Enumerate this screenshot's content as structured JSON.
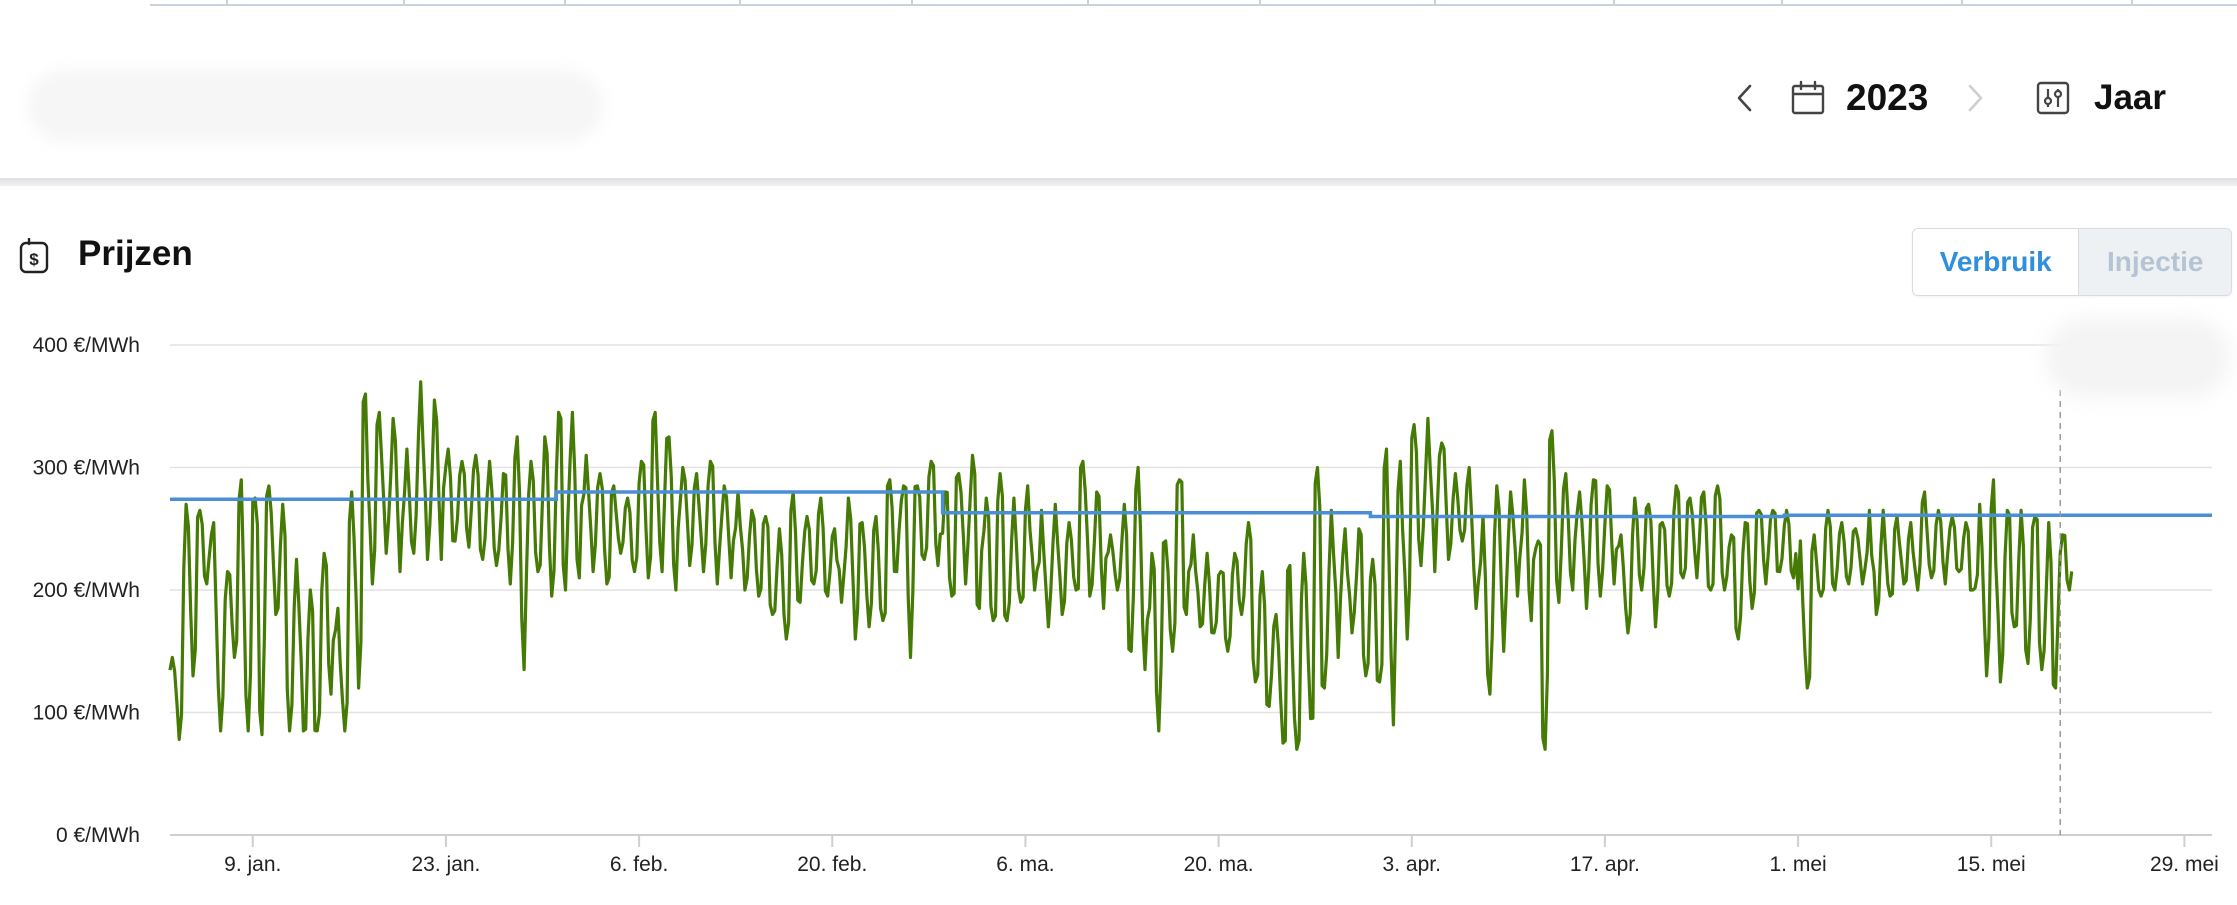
{
  "header": {
    "year": "2023",
    "period": "Jaar",
    "icons": [
      "chevron-left-icon",
      "calendar-icon",
      "chevron-right-icon",
      "sliders-icon"
    ]
  },
  "section": {
    "title": "Prijzen",
    "icon": "price-tag-icon"
  },
  "toggle": {
    "verbruik_label": "Verbruik",
    "injectie_label": "Injectie",
    "active": "Verbruik"
  },
  "colors": {
    "price_line": "#457a05",
    "avg_line": "#4a8fd4",
    "toggle_active": "#2f8fdd",
    "gridline": "#e2e2e2"
  },
  "chart_data": {
    "type": "line",
    "title": "",
    "xlabel": "",
    "ylabel": "",
    "ylim": [
      0,
      400
    ],
    "xlim": [
      "2023-01-03",
      "2023-05-31"
    ],
    "grid": true,
    "y_ticks": [
      {
        "value": 0,
        "label": "0 €/MWh"
      },
      {
        "value": 100,
        "label": "100 €/MWh"
      },
      {
        "value": 200,
        "label": "200 €/MWh"
      },
      {
        "value": 300,
        "label": "300 €/MWh"
      },
      {
        "value": 400,
        "label": "400 €/MWh"
      }
    ],
    "x_ticks": [
      {
        "date": "2023-01-09",
        "label": "9. jan."
      },
      {
        "date": "2023-01-23",
        "label": "23. jan."
      },
      {
        "date": "2023-02-06",
        "label": "6. feb."
      },
      {
        "date": "2023-02-20",
        "label": "20. feb."
      },
      {
        "date": "2023-03-06",
        "label": "6. ma."
      },
      {
        "date": "2023-03-20",
        "label": "20. ma."
      },
      {
        "date": "2023-04-03",
        "label": "3. apr."
      },
      {
        "date": "2023-04-17",
        "label": "17. apr."
      },
      {
        "date": "2023-05-01",
        "label": "1. mei"
      },
      {
        "date": "2023-05-15",
        "label": "15. mei"
      },
      {
        "date": "2023-05-29",
        "label": "29. mei"
      }
    ],
    "marker_date": "2023-05-20",
    "series": [
      {
        "role": "price",
        "color": "#457a05",
        "x": [
          "2023-01-03",
          "2023-01-04",
          "2023-01-05",
          "2023-01-06",
          "2023-01-07",
          "2023-01-08",
          "2023-01-09",
          "2023-01-10",
          "2023-01-11",
          "2023-01-12",
          "2023-01-13",
          "2023-01-14",
          "2023-01-15",
          "2023-01-16",
          "2023-01-17",
          "2023-01-18",
          "2023-01-19",
          "2023-01-20",
          "2023-01-21",
          "2023-01-22",
          "2023-01-23",
          "2023-01-24",
          "2023-01-25",
          "2023-01-26",
          "2023-01-27",
          "2023-01-28",
          "2023-01-29",
          "2023-01-30",
          "2023-01-31",
          "2023-02-01",
          "2023-02-02",
          "2023-02-03",
          "2023-02-04",
          "2023-02-05",
          "2023-02-06",
          "2023-02-07",
          "2023-02-08",
          "2023-02-09",
          "2023-02-10",
          "2023-02-11",
          "2023-02-12",
          "2023-02-13",
          "2023-02-14",
          "2023-02-15",
          "2023-02-16",
          "2023-02-17",
          "2023-02-18",
          "2023-02-19",
          "2023-02-20",
          "2023-02-21",
          "2023-02-22",
          "2023-02-23",
          "2023-02-24",
          "2023-02-25",
          "2023-02-26",
          "2023-02-27",
          "2023-02-28",
          "2023-03-01",
          "2023-03-02",
          "2023-03-03",
          "2023-03-04",
          "2023-03-05",
          "2023-03-06",
          "2023-03-07",
          "2023-03-08",
          "2023-03-09",
          "2023-03-10",
          "2023-03-11",
          "2023-03-12",
          "2023-03-13",
          "2023-03-14",
          "2023-03-15",
          "2023-03-16",
          "2023-03-17",
          "2023-03-18",
          "2023-03-19",
          "2023-03-20",
          "2023-03-21",
          "2023-03-22",
          "2023-03-23",
          "2023-03-24",
          "2023-03-25",
          "2023-03-26",
          "2023-03-27",
          "2023-03-28",
          "2023-03-29",
          "2023-03-30",
          "2023-03-31",
          "2023-04-01",
          "2023-04-02",
          "2023-04-03",
          "2023-04-04",
          "2023-04-05",
          "2023-04-06",
          "2023-04-07",
          "2023-04-08",
          "2023-04-09",
          "2023-04-10",
          "2023-04-11",
          "2023-04-12",
          "2023-04-13",
          "2023-04-14",
          "2023-04-15",
          "2023-04-16",
          "2023-04-17",
          "2023-04-18",
          "2023-04-19",
          "2023-04-20",
          "2023-04-21",
          "2023-04-22",
          "2023-04-23",
          "2023-04-24",
          "2023-04-25",
          "2023-04-26",
          "2023-04-27",
          "2023-04-28",
          "2023-04-29",
          "2023-04-30",
          "2023-05-01",
          "2023-05-02",
          "2023-05-03",
          "2023-05-04",
          "2023-05-05",
          "2023-05-06",
          "2023-05-07",
          "2023-05-08",
          "2023-05-09",
          "2023-05-10",
          "2023-05-11",
          "2023-05-12",
          "2023-05-13",
          "2023-05-14",
          "2023-05-15",
          "2023-05-16",
          "2023-05-17",
          "2023-05-18",
          "2023-05-19",
          "2023-05-20",
          "2023-05-21",
          "2023-05-22"
        ],
        "y_min": [
          78,
          130,
          205,
          85,
          145,
          85,
          82,
          180,
          85,
          85,
          85,
          115,
          85,
          120,
          205,
          230,
          215,
          230,
          225,
          225,
          240,
          235,
          225,
          220,
          205,
          135,
          215,
          195,
          200,
          210,
          215,
          205,
          230,
          215,
          210,
          215,
          200,
          220,
          215,
          205,
          210,
          200,
          195,
          180,
          160,
          190,
          205,
          195,
          190,
          160,
          170,
          175,
          215,
          145,
          225,
          220,
          195,
          205,
          185,
          175,
          175,
          190,
          200,
          170,
          180,
          200,
          195,
          185,
          200,
          150,
          135,
          85,
          150,
          180,
          170,
          165,
          150,
          180,
          125,
          105,
          75,
          70,
          95,
          120,
          145,
          165,
          130,
          125,
          90,
          160,
          220,
          215,
          225,
          240,
          185,
          115,
          150,
          195,
          175,
          70,
          190,
          200,
          185,
          195,
          205,
          165,
          200,
          170,
          195,
          210,
          210,
          200,
          200,
          160,
          185,
          205,
          215,
          210,
          120,
          195,
          200,
          205,
          205,
          180,
          195,
          205,
          200,
          210,
          205,
          215,
          200,
          130,
          125,
          170,
          140,
          135,
          120,
          200
        ],
        "y_max": [
          145,
          270,
          265,
          255,
          215,
          290,
          275,
          285,
          270,
          225,
          200,
          230,
          185,
          280,
          360,
          345,
          340,
          315,
          370,
          355,
          315,
          305,
          310,
          305,
          295,
          325,
          305,
          325,
          345,
          345,
          310,
          295,
          285,
          275,
          305,
          345,
          325,
          300,
          295,
          305,
          285,
          280,
          265,
          260,
          250,
          280,
          260,
          275,
          250,
          275,
          255,
          260,
          290,
          285,
          285,
          305,
          280,
          295,
          310,
          275,
          295,
          275,
          285,
          265,
          270,
          255,
          305,
          280,
          245,
          270,
          300,
          230,
          240,
          290,
          245,
          230,
          215,
          230,
          255,
          215,
          180,
          220,
          230,
          300,
          265,
          250,
          250,
          225,
          315,
          305,
          335,
          340,
          320,
          295,
          300,
          260,
          285,
          280,
          290,
          240,
          330,
          295,
          280,
          290,
          285,
          245,
          275,
          270,
          255,
          285,
          275,
          280,
          285,
          245,
          255,
          265,
          265,
          265,
          240,
          245,
          265,
          255,
          250,
          265,
          265,
          260,
          255,
          280,
          265,
          260,
          255,
          270,
          290,
          265,
          265,
          260,
          255,
          245
        ],
        "last_value": 200
      },
      {
        "role": "average",
        "color": "#4a8fd4",
        "steps": [
          {
            "from": "2023-01-03",
            "to": "2023-01-31",
            "value": 274
          },
          {
            "from": "2023-01-31",
            "to": "2023-02-28",
            "value": 280
          },
          {
            "from": "2023-02-28",
            "to": "2023-03-31",
            "value": 263
          },
          {
            "from": "2023-03-31",
            "to": "2023-04-30",
            "value": 260
          },
          {
            "from": "2023-04-30",
            "to": "2023-05-31",
            "value": 261
          }
        ]
      }
    ]
  }
}
